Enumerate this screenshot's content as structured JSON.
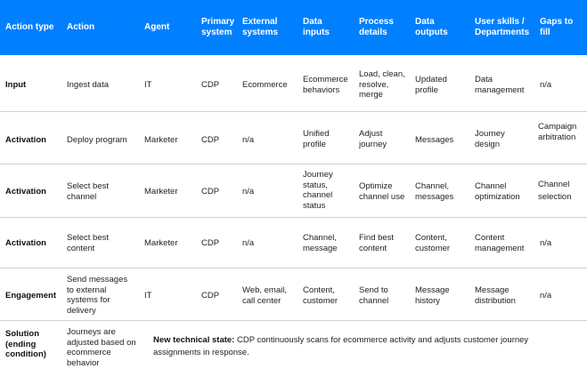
{
  "headers": {
    "action_type": "Action type",
    "action": "Action",
    "agent": "Agent",
    "primary_system": "Primary system",
    "external_systems": "External systems",
    "data_inputs": "Data inputs",
    "process_details": "Process details",
    "data_outputs": "Data outputs",
    "user_skills": "User skills / Departments",
    "gaps": "Gaps to fill"
  },
  "rows": [
    {
      "action_type": "Input",
      "action": "Ingest data",
      "agent": "IT",
      "primary_system": "CDP",
      "external_systems": "Ecommerce",
      "data_inputs": "Ecommerce behaviors",
      "process_details": "Load, clean, resolve, merge",
      "data_outputs": "Updated profile",
      "user_skills": "Data management",
      "gaps": "n/a"
    },
    {
      "action_type": "Activation",
      "action": "Deploy program",
      "agent": "Marketer",
      "primary_system": "CDP",
      "external_systems": "n/a",
      "data_inputs": "Unified profile",
      "process_details": "Adjust journey",
      "data_outputs": "Messages",
      "user_skills": "Journey design",
      "gaps": "Campaign arbitration"
    },
    {
      "action_type": "Activation",
      "action": "Select best channel",
      "agent": "Marketer",
      "primary_system": "CDP",
      "external_systems": "n/a",
      "data_inputs": "Journey status, channel status",
      "process_details": "Optimize channel use",
      "data_outputs": "Channel, messages",
      "user_skills": "Channel optimization",
      "gaps": "Channel selection"
    },
    {
      "action_type": "Activation",
      "action": "Select best content",
      "agent": "Marketer",
      "primary_system": "CDP",
      "external_systems": "n/a",
      "data_inputs": "Channel, message",
      "process_details": "Find best content",
      "data_outputs": "Content, customer",
      "user_skills": "Content management",
      "gaps": "n/a"
    },
    {
      "action_type": "Engagement",
      "action": "Send messages to external systems for delivery",
      "agent": "IT",
      "primary_system": "CDP",
      "external_systems": "Web, email, call center",
      "data_inputs": "Content, customer",
      "process_details": "Send to channel",
      "data_outputs": "Message history",
      "user_skills": "Message distribution",
      "gaps": "n/a"
    }
  ],
  "solution": {
    "label": "Solution (ending condition)",
    "action": "Journeys are adjusted based on ecommerce behavior",
    "state_label": "New technical state:",
    "state_text": " CDP continuously scans for ecommerce activity and adjusts customer journey assignments in response."
  },
  "colors": {
    "header_bg": "#0080ff",
    "header_text": "#ffffff",
    "row_divider": "#cfcfcf"
  }
}
